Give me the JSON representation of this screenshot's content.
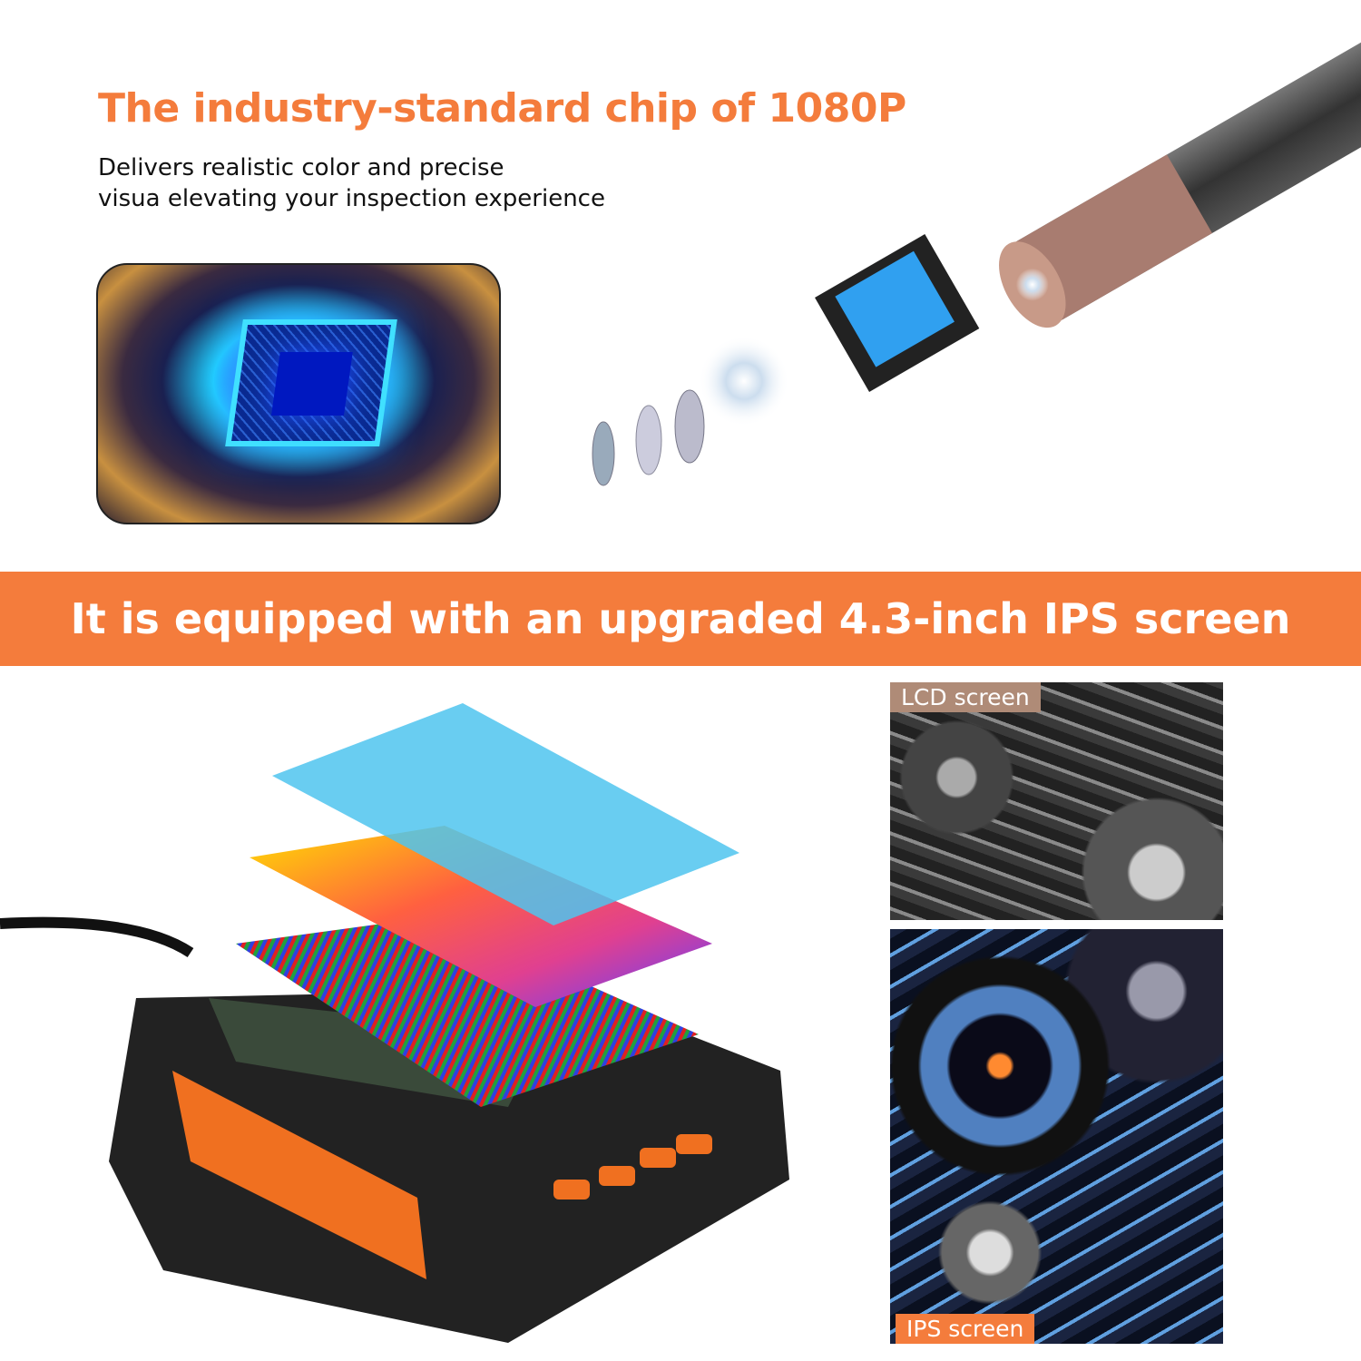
{
  "heading": "The industry-standard chip of 1080P",
  "subtext": [
    "Delivers realistic color and precise",
    "visua elevating your inspection experience"
  ],
  "banner": "It is equipped with an upgraded 4.3-inch IPS screen",
  "comparison": {
    "top_label": "LCD screen",
    "bottom_label": "IPS screen"
  },
  "colors": {
    "accent": "#f47c3c"
  }
}
